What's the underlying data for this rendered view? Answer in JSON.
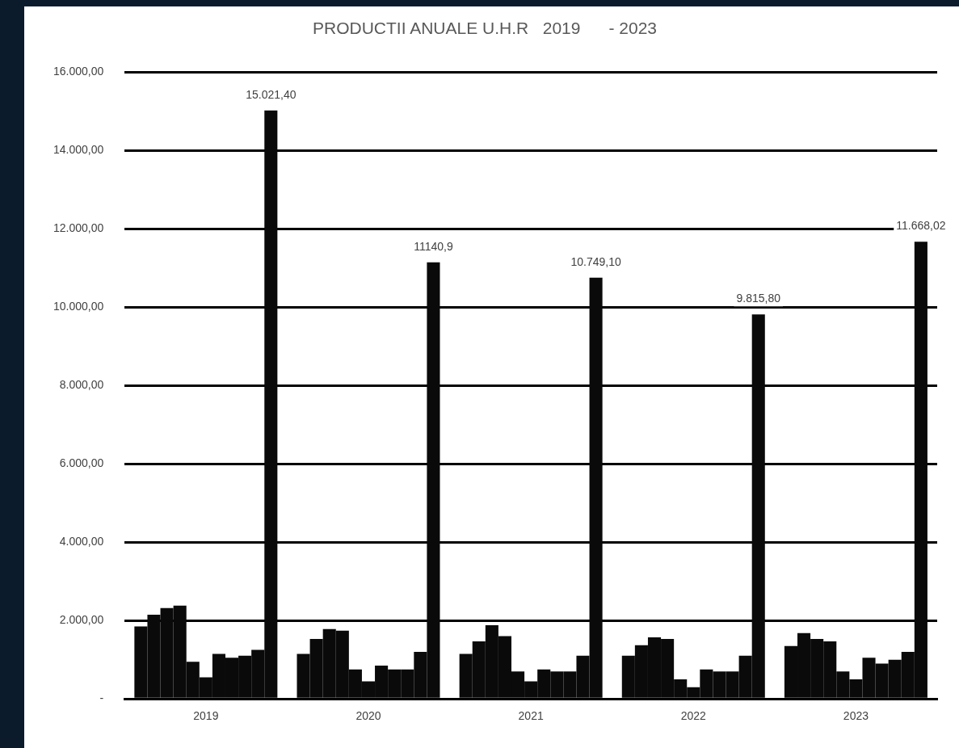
{
  "chart_data": {
    "type": "bar",
    "title": "PRODUCTII ANUALE U.H.R   2019      - 2023",
    "categories": [
      "2019",
      "2020",
      "2021",
      "2022",
      "2023"
    ],
    "series": [
      {
        "color": "#0a0a0a",
        "values": [
          1850,
          1150,
          1150,
          1100,
          1350
        ]
      },
      {
        "color": "#0a0a0a",
        "values": [
          2150,
          1530,
          1470,
          1370,
          1680
        ]
      },
      {
        "color": "#0a0a0a",
        "values": [
          2320,
          1780,
          1880,
          1570,
          1530
        ]
      },
      {
        "color": "#0a0a0a",
        "values": [
          2380,
          1740,
          1600,
          1530,
          1470
        ]
      },
      {
        "color": "#0a0a0a",
        "values": [
          950,
          750,
          700,
          500,
          700
        ]
      },
      {
        "color": "#0a0a0a",
        "values": [
          550,
          450,
          450,
          300,
          500
        ]
      },
      {
        "color": "#0a0a0a",
        "values": [
          1150,
          850,
          750,
          750,
          1050
        ]
      },
      {
        "color": "#0a0a0a",
        "values": [
          1050,
          750,
          700,
          700,
          900
        ]
      },
      {
        "color": "#0a0a0a",
        "values": [
          1100,
          750,
          700,
          700,
          1000
        ]
      },
      {
        "color": "#0a0a0a",
        "values": [
          1250,
          1200,
          1100,
          1100,
          1200
        ]
      },
      {
        "color": "#0a0a0a",
        "values": [
          15021.4,
          11140.9,
          10749.1,
          9815.8,
          11668.02
        ],
        "value_labels": [
          "15.021,40",
          "11140,9",
          "10.749,10",
          "9.815,80",
          "11.668,02"
        ]
      }
    ],
    "ylim": [
      0,
      16000
    ],
    "yticks": [
      {
        "value": 0,
        "label": "-"
      },
      {
        "value": 2000,
        "label": "2.000,00"
      },
      {
        "value": 4000,
        "label": "4.000,00"
      },
      {
        "value": 6000,
        "label": "6.000,00"
      },
      {
        "value": 8000,
        "label": "8.000,00"
      },
      {
        "value": 10000,
        "label": "10.000,00"
      },
      {
        "value": 12000,
        "label": "12.000,00"
      },
      {
        "value": 14000,
        "label": "14.000,00"
      },
      {
        "value": 16000,
        "label": "16.000,00"
      }
    ],
    "grid": "y",
    "legend": false
  }
}
